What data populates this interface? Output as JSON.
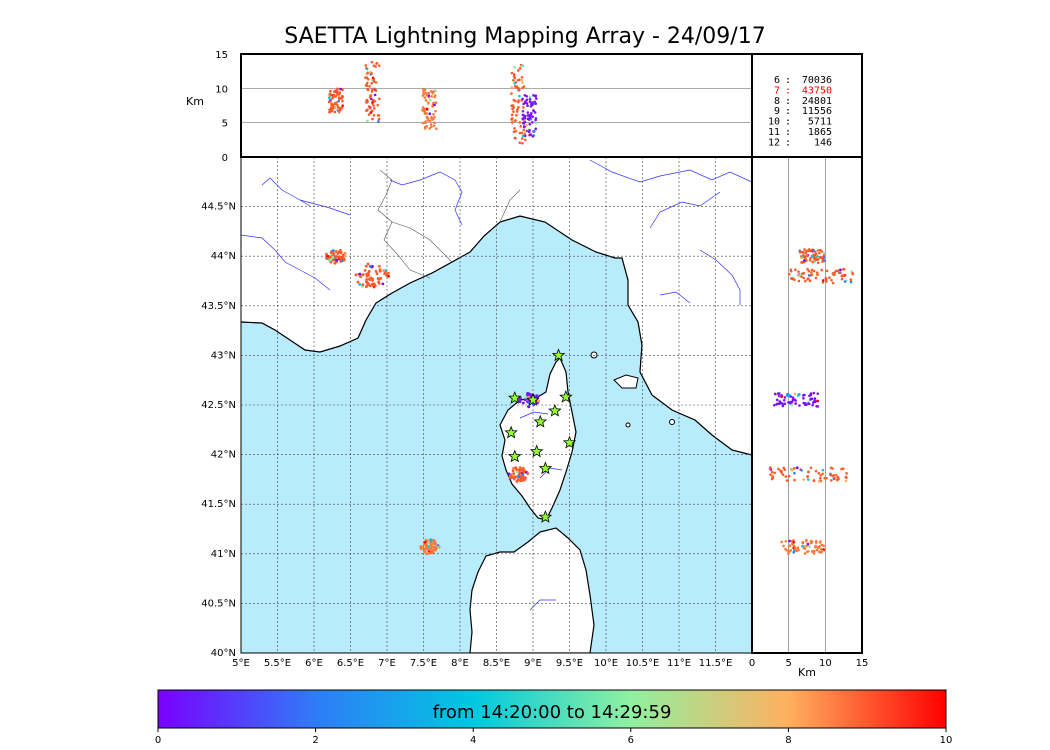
{
  "title": "SAETTA Lightning Mapping Array - 24/09/17",
  "chart_data": {
    "type": "scatter",
    "panels": {
      "altitude_lon": {
        "ylabel": "Km",
        "ylim": [
          0,
          15
        ],
        "yticks": [
          "0",
          "5",
          "10",
          "15"
        ]
      },
      "map": {
        "xlim": [
          5,
          12
        ],
        "ylim": [
          40,
          45
        ],
        "xticks": [
          "5°E",
          "5.5°E",
          "6°E",
          "6.5°E",
          "7°E",
          "7.5°E",
          "8°E",
          "8.5°E",
          "9°E",
          "9.5°E",
          "10°E",
          "10.5°E",
          "11°E",
          "11.5°E"
        ],
        "yticks": [
          "40°N",
          "40.5°N",
          "41°N",
          "41.5°N",
          "42°N",
          "42.5°N",
          "43°N",
          "43.5°N",
          "44°N",
          "44.5°N"
        ]
      },
      "altitude_lat": {
        "xlabel": "Km",
        "xlim": [
          0,
          15
        ],
        "xticks": [
          "0",
          "5",
          "10",
          "15"
        ]
      }
    },
    "station_counts": [
      {
        "stations": "6",
        "count": "70036",
        "color": "#000000"
      },
      {
        "stations": "7",
        "count": "43750",
        "color": "#ff0000"
      },
      {
        "stations": "8",
        "count": "24801",
        "color": "#000000"
      },
      {
        "stations": "9",
        "count": "11556",
        "color": "#000000"
      },
      {
        "stations": "10",
        "count": "5711",
        "color": "#000000"
      },
      {
        "stations": "11",
        "count": "1865",
        "color": "#000000"
      },
      {
        "stations": "12",
        "count": "146",
        "color": "#000000"
      }
    ],
    "sensor_stations": [
      {
        "lon": 9.35,
        "lat": 43.0
      },
      {
        "lon": 8.75,
        "lat": 42.57
      },
      {
        "lon": 9.0,
        "lat": 42.55
      },
      {
        "lon": 9.45,
        "lat": 42.58
      },
      {
        "lon": 9.3,
        "lat": 42.44
      },
      {
        "lon": 9.1,
        "lat": 42.33
      },
      {
        "lon": 8.7,
        "lat": 42.22
      },
      {
        "lon": 9.5,
        "lat": 42.12
      },
      {
        "lon": 9.05,
        "lat": 42.03
      },
      {
        "lon": 8.75,
        "lat": 41.98
      },
      {
        "lon": 9.17,
        "lat": 41.86
      },
      {
        "lon": 9.17,
        "lat": 41.37
      }
    ],
    "lightning_clusters": [
      {
        "lon": 6.3,
        "lat": 44.0,
        "alt_min": 6.5,
        "alt_max": 10,
        "color": "#ff5a28"
      },
      {
        "lon": 6.8,
        "lat": 43.8,
        "alt_min": 5,
        "alt_max": 14,
        "color": "#ff5a28"
      },
      {
        "lon": 7.58,
        "lat": 41.07,
        "alt_min": 4,
        "alt_max": 10,
        "color": "#ff7a3a"
      },
      {
        "lon": 8.8,
        "lat": 41.8,
        "alt_min": 2,
        "alt_max": 13.5,
        "color": "#ff5a28"
      },
      {
        "lon": 8.95,
        "lat": 42.55,
        "alt_min": 3,
        "alt_max": 9,
        "color": "#7b10ff"
      }
    ],
    "colorbar": {
      "label": "from 14:20:00 to 14:29:59",
      "range": [
        0,
        10
      ],
      "ticks": [
        "0",
        "2",
        "4",
        "6",
        "8",
        "10"
      ],
      "colors": [
        "#7a00ff",
        "#2f7cf7",
        "#00c0e0",
        "#80f0a0",
        "#ffb060",
        "#ff0000"
      ]
    }
  }
}
